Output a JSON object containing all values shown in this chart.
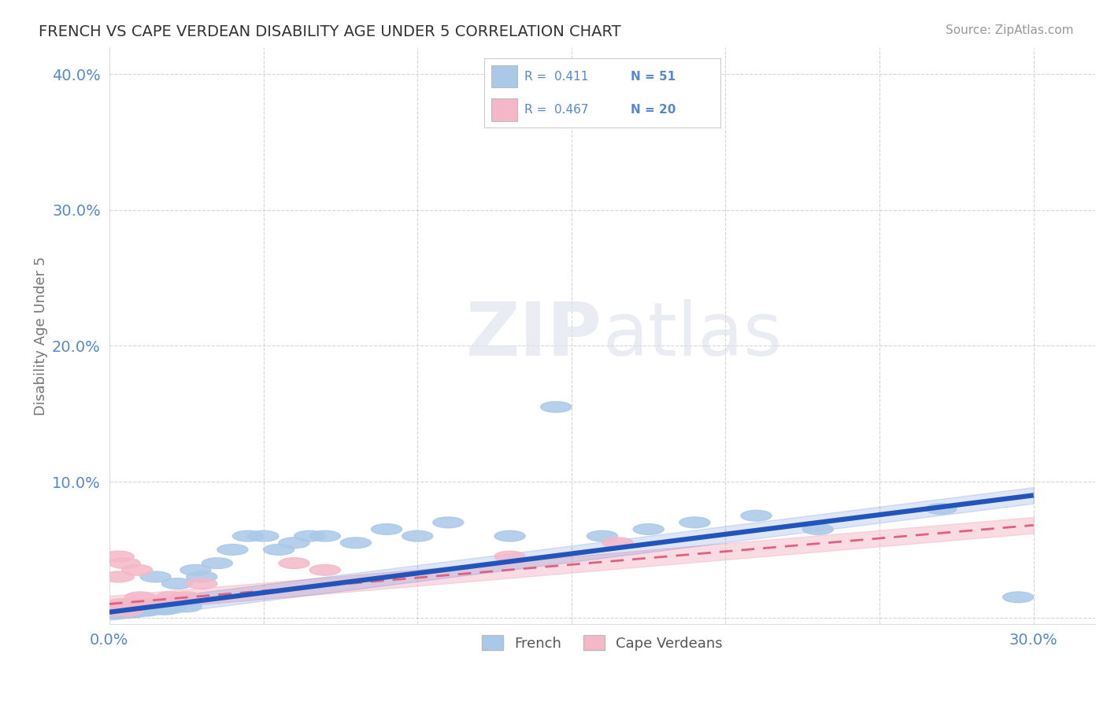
{
  "title": "FRENCH VS CAPE VERDEAN DISABILITY AGE UNDER 5 CORRELATION CHART",
  "source": "Source: ZipAtlas.com",
  "ylabel": "Disability Age Under 5",
  "xlim": [
    0.0,
    0.32
  ],
  "ylim": [
    -0.005,
    0.42
  ],
  "xticks": [
    0.0,
    0.05,
    0.1,
    0.15,
    0.2,
    0.25,
    0.3
  ],
  "yticks": [
    0.0,
    0.1,
    0.2,
    0.3,
    0.4
  ],
  "french_R": 0.411,
  "french_N": 51,
  "capeverdean_R": 0.467,
  "capeverdean_N": 20,
  "french_color": "#aac8e8",
  "french_line_color": "#2255bb",
  "capeverdean_color": "#f4b8c8",
  "capeverdean_line_color": "#e06080",
  "background_color": "#ffffff",
  "grid_color": "#cccccc",
  "title_color": "#333333",
  "source_color": "#999999",
  "tick_color": "#5588cc",
  "ylabel_color": "#777777",
  "watermark_color": "#e8e8e8",
  "french_x": [
    0.001,
    0.002,
    0.002,
    0.003,
    0.003,
    0.004,
    0.004,
    0.005,
    0.005,
    0.006,
    0.006,
    0.007,
    0.007,
    0.008,
    0.008,
    0.009,
    0.01,
    0.01,
    0.011,
    0.012,
    0.013,
    0.014,
    0.015,
    0.017,
    0.018,
    0.02,
    0.022,
    0.025,
    0.028,
    0.03,
    0.035,
    0.04,
    0.045,
    0.05,
    0.055,
    0.06,
    0.065,
    0.07,
    0.08,
    0.09,
    0.1,
    0.11,
    0.13,
    0.145,
    0.16,
    0.175,
    0.19,
    0.21,
    0.23,
    0.27,
    0.295
  ],
  "french_y": [
    0.004,
    0.003,
    0.006,
    0.005,
    0.007,
    0.004,
    0.008,
    0.005,
    0.006,
    0.004,
    0.007,
    0.005,
    0.008,
    0.004,
    0.006,
    0.005,
    0.007,
    0.006,
    0.008,
    0.005,
    0.007,
    0.006,
    0.03,
    0.008,
    0.006,
    0.007,
    0.025,
    0.008,
    0.035,
    0.03,
    0.04,
    0.05,
    0.06,
    0.06,
    0.05,
    0.055,
    0.06,
    0.06,
    0.055,
    0.065,
    0.06,
    0.07,
    0.06,
    0.155,
    0.06,
    0.065,
    0.07,
    0.075,
    0.065,
    0.08,
    0.015
  ],
  "capeverdean_x": [
    0.001,
    0.002,
    0.003,
    0.003,
    0.004,
    0.005,
    0.005,
    0.006,
    0.007,
    0.008,
    0.009,
    0.01,
    0.012,
    0.02,
    0.025,
    0.03,
    0.06,
    0.07,
    0.13,
    0.165
  ],
  "capeverdean_y": [
    0.005,
    0.008,
    0.03,
    0.045,
    0.01,
    0.006,
    0.04,
    0.005,
    0.008,
    0.01,
    0.035,
    0.015,
    0.01,
    0.015,
    0.015,
    0.025,
    0.04,
    0.035,
    0.045,
    0.055
  ],
  "french_trend_x0": 0.0,
  "french_trend_y0": 0.004,
  "french_trend_x1": 0.3,
  "french_trend_y1": 0.09,
  "cape_trend_x0": 0.0,
  "cape_trend_y0": 0.01,
  "cape_trend_x1": 0.3,
  "cape_trend_y1": 0.068
}
